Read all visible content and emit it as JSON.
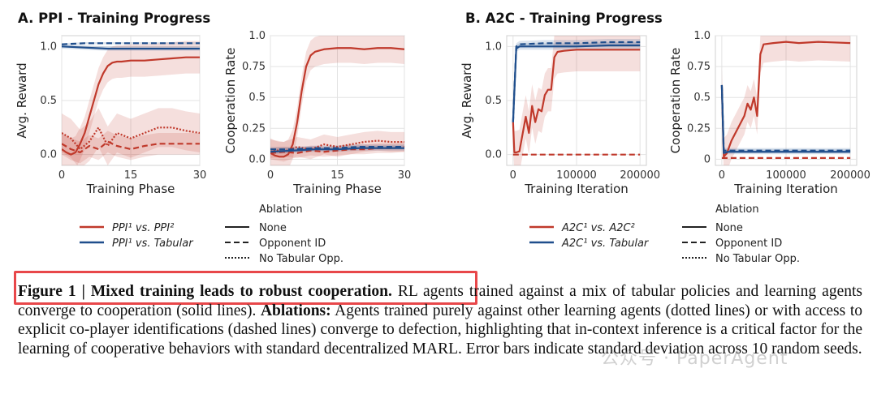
{
  "panels": [
    {
      "title": "A. PPI - Training Progress"
    },
    {
      "title": "B. A2C - Training Progress"
    }
  ],
  "colors": {
    "red": "#c0392b",
    "blue": "#1f4e8c",
    "grid": "#e3e3e3",
    "highlight": "#e8474a"
  },
  "legend": {
    "panelA": {
      "series": [
        "PPI¹ vs. PPI²",
        "PPI¹ vs. Tabular"
      ]
    },
    "panelB": {
      "series": [
        "A2C¹ vs. A2C²",
        "A2C¹ vs. Tabular"
      ]
    },
    "ablation_title": "Ablation",
    "ablation_items": [
      "None",
      "Opponent ID",
      "No Tabular Opp."
    ]
  },
  "caption": {
    "title": "Figure 1 | Mixed training leads to robust cooperation.",
    "text1": " RL agents trained against a mix of tabular policies and learning agents converge to cooperation (solid lines). ",
    "bold2": "Ablations:",
    "text2": " Agents trained purely against other learning agents (dotted lines) or with access to explicit co-player identifications (dashed lines) converge to defection, highlighting that in-context inference is a critical factor for the learning of cooperative behaviors with standard decentralized MARL. Error bars indicate standard deviation across 10 random seeds."
  },
  "watermark": "公众号 · PaperAgent",
  "chart_data": [
    {
      "type": "line",
      "panel": "A",
      "xlabel": "Training Phase",
      "ylabel": "Avg. Reward",
      "xlim": [
        0,
        30
      ],
      "ylim": [
        -0.1,
        1.1
      ],
      "xticks": [
        0,
        15,
        30
      ],
      "yticks": [
        0.0,
        0.5,
        1.0
      ],
      "yticklabels": [
        "0.0",
        "0.5",
        "1.0"
      ],
      "grid": true,
      "series": [
        {
          "color": "red",
          "style": "solid",
          "x": [
            0,
            1,
            2,
            3,
            4,
            5,
            6,
            7,
            8,
            9,
            10,
            11,
            12,
            13,
            15,
            18,
            21,
            24,
            27,
            30
          ],
          "y": [
            0.05,
            0.02,
            0.0,
            0.02,
            0.1,
            0.2,
            0.35,
            0.5,
            0.65,
            0.75,
            0.82,
            0.85,
            0.86,
            0.86,
            0.87,
            0.87,
            0.88,
            0.89,
            0.9,
            0.9
          ],
          "band": 0.15
        },
        {
          "color": "blue",
          "style": "solid",
          "x": [
            0,
            5,
            10,
            15,
            20,
            25,
            30
          ],
          "y": [
            1.0,
            0.99,
            0.98,
            0.98,
            0.98,
            0.98,
            0.98
          ],
          "band": 0.02
        },
        {
          "color": "blue",
          "style": "dashed",
          "x": [
            0,
            5,
            10,
            15,
            20,
            25,
            30
          ],
          "y": [
            1.02,
            1.03,
            1.03,
            1.03,
            1.03,
            1.03,
            1.03
          ],
          "band": 0.01
        },
        {
          "color": "red",
          "style": "dashed",
          "x": [
            0,
            2,
            4,
            6,
            8,
            10,
            12,
            15,
            18,
            21,
            24,
            27,
            30
          ],
          "y": [
            0.1,
            0.05,
            0.02,
            0.08,
            0.05,
            0.12,
            0.08,
            0.05,
            0.08,
            0.1,
            0.1,
            0.1,
            0.1
          ],
          "band": 0.1
        },
        {
          "color": "red",
          "style": "dotted",
          "x": [
            0,
            2,
            4,
            6,
            8,
            10,
            12,
            15,
            18,
            21,
            24,
            27,
            30
          ],
          "y": [
            0.2,
            0.15,
            0.05,
            0.12,
            0.25,
            0.08,
            0.2,
            0.15,
            0.2,
            0.25,
            0.25,
            0.22,
            0.2
          ],
          "band": 0.18
        }
      ]
    },
    {
      "type": "line",
      "panel": "A",
      "xlabel": "Training Phase",
      "ylabel": "Cooperation Rate",
      "xlim": [
        0,
        30
      ],
      "ylim": [
        -0.05,
        1.0
      ],
      "xticks": [
        0,
        15,
        30
      ],
      "yticks": [
        0.0,
        0.25,
        0.5,
        0.75,
        1.0
      ],
      "yticklabels": [
        "0.0",
        "0.25",
        "0.5",
        "0.75",
        "1.0"
      ],
      "grid": true,
      "series": [
        {
          "color": "red",
          "style": "solid",
          "x": [
            0,
            1,
            2,
            3,
            4,
            5,
            6,
            7,
            8,
            9,
            10,
            11,
            12,
            15,
            18,
            21,
            24,
            27,
            30
          ],
          "y": [
            0.05,
            0.03,
            0.02,
            0.02,
            0.04,
            0.12,
            0.3,
            0.55,
            0.75,
            0.84,
            0.87,
            0.88,
            0.89,
            0.9,
            0.9,
            0.89,
            0.9,
            0.9,
            0.89
          ],
          "band": 0.12
        },
        {
          "color": "red",
          "style": "dotted",
          "x": [
            0,
            3,
            6,
            9,
            12,
            15,
            18,
            21,
            24,
            27,
            30
          ],
          "y": [
            0.08,
            0.06,
            0.1,
            0.08,
            0.12,
            0.1,
            0.12,
            0.14,
            0.15,
            0.14,
            0.14
          ],
          "band": 0.08
        },
        {
          "color": "red",
          "style": "dashed",
          "x": [
            0,
            3,
            6,
            9,
            12,
            15,
            18,
            21,
            24,
            27,
            30
          ],
          "y": [
            0.05,
            0.06,
            0.05,
            0.07,
            0.06,
            0.07,
            0.08,
            0.08,
            0.09,
            0.09,
            0.1
          ],
          "band": 0.04
        },
        {
          "color": "blue",
          "style": "solid",
          "x": [
            0,
            5,
            10,
            15,
            20,
            25,
            30
          ],
          "y": [
            0.06,
            0.07,
            0.08,
            0.08,
            0.09,
            0.09,
            0.09
          ],
          "band": 0.02
        },
        {
          "color": "blue",
          "style": "dashed",
          "x": [
            0,
            5,
            10,
            15,
            20,
            25,
            30
          ],
          "y": [
            0.08,
            0.08,
            0.09,
            0.09,
            0.1,
            0.1,
            0.1
          ],
          "band": 0.02
        }
      ]
    },
    {
      "type": "line",
      "panel": "B",
      "xlabel": "Training Iteration",
      "ylabel": "Avg. Reward",
      "xlim": [
        -10000,
        210000
      ],
      "ylim": [
        -0.1,
        1.1
      ],
      "xticks": [
        0,
        100000,
        200000
      ],
      "yticks": [
        0.0,
        0.5,
        1.0
      ],
      "yticklabels": [
        "0.0",
        "0.5",
        "1.0"
      ],
      "xticklabels": [
        "0",
        "100000",
        "200000"
      ],
      "grid": true,
      "series": [
        {
          "color": "red",
          "style": "solid",
          "x": [
            0,
            2000,
            5000,
            10000,
            20000,
            25000,
            30000,
            35000,
            40000,
            45000,
            50000,
            55000,
            60000,
            65000,
            70000,
            80000,
            100000,
            150000,
            200000
          ],
          "y": [
            0.3,
            0.02,
            0.02,
            0.03,
            0.35,
            0.2,
            0.45,
            0.3,
            0.42,
            0.4,
            0.55,
            0.6,
            0.6,
            0.9,
            0.95,
            0.96,
            0.97,
            0.97,
            0.97
          ],
          "band": 0.2
        },
        {
          "color": "red",
          "style": "dashed",
          "x": [
            0,
            200000
          ],
          "y": [
            0.0,
            0.0
          ],
          "band": 0.0
        },
        {
          "color": "blue",
          "style": "solid",
          "x": [
            0,
            5000,
            10000,
            50000,
            100000,
            150000,
            200000
          ],
          "y": [
            0.3,
            0.98,
            1.0,
            1.0,
            1.0,
            1.01,
            1.01
          ],
          "band": 0.03
        },
        {
          "color": "blue",
          "style": "dashed",
          "x": [
            0,
            5000,
            10000,
            50000,
            100000,
            150000,
            200000
          ],
          "y": [
            0.3,
            1.0,
            1.02,
            1.03,
            1.03,
            1.04,
            1.04
          ],
          "band": 0.03
        }
      ]
    },
    {
      "type": "line",
      "panel": "B",
      "xlabel": "Training Iteration",
      "ylabel": "Cooperation Rate",
      "xlim": [
        -10000,
        210000
      ],
      "ylim": [
        -0.05,
        1.0
      ],
      "xticks": [
        0,
        100000,
        200000
      ],
      "yticks": [
        0.0,
        0.25,
        0.5,
        0.75,
        1.0
      ],
      "yticklabels": [
        "0",
        "0.25",
        "0.5",
        "0.75",
        "1.0"
      ],
      "xticklabels": [
        "0",
        "100000",
        "200000"
      ],
      "grid": true,
      "series": [
        {
          "color": "red",
          "style": "solid",
          "x": [
            0,
            3000,
            8000,
            15000,
            20000,
            25000,
            30000,
            35000,
            40000,
            45000,
            50000,
            55000,
            60000,
            65000,
            80000,
            100000,
            120000,
            150000,
            200000
          ],
          "y": [
            0.6,
            0.02,
            0.05,
            0.15,
            0.2,
            0.25,
            0.3,
            0.35,
            0.45,
            0.4,
            0.5,
            0.35,
            0.85,
            0.93,
            0.94,
            0.95,
            0.94,
            0.95,
            0.94
          ],
          "band": 0.15
        },
        {
          "color": "blue",
          "style": "solid",
          "x": [
            0,
            3000,
            10000,
            50000,
            100000,
            150000,
            200000
          ],
          "y": [
            0.6,
            0.05,
            0.06,
            0.06,
            0.06,
            0.06,
            0.06
          ],
          "band": 0.02
        },
        {
          "color": "blue",
          "style": "dashed",
          "x": [
            0,
            3000,
            10000,
            50000,
            100000,
            150000,
            200000
          ],
          "y": [
            0.6,
            0.07,
            0.07,
            0.07,
            0.07,
            0.07,
            0.07
          ],
          "band": 0.02
        },
        {
          "color": "red",
          "style": "dashed",
          "x": [
            0,
            200000
          ],
          "y": [
            0.01,
            0.01
          ],
          "band": 0.0
        }
      ]
    }
  ]
}
